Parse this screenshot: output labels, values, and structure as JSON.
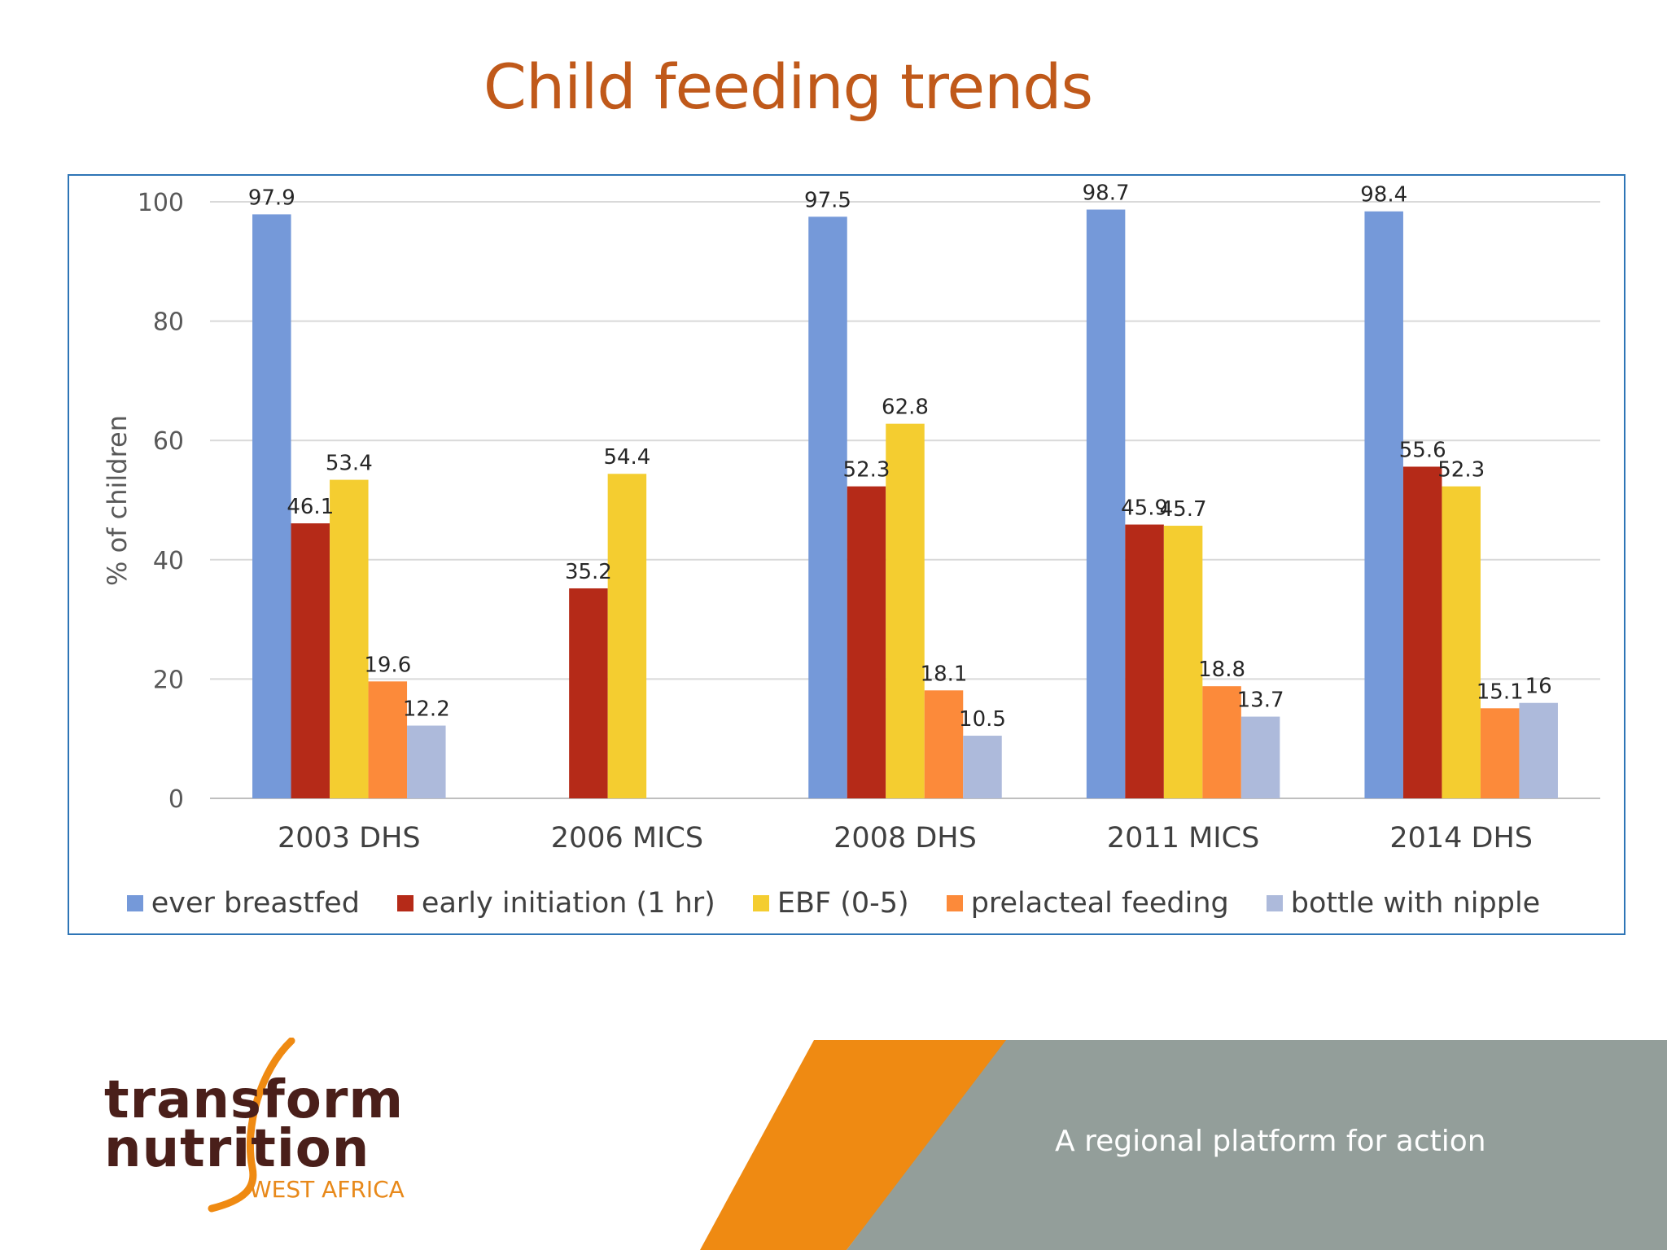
{
  "slide": {
    "title": "Child feeding trends",
    "tagline": "A regional platform for action"
  },
  "logo": {
    "line1": "transform",
    "line2": "nutrition",
    "sub": "WEST AFRICA"
  },
  "colors": {
    "title": "#c0591a",
    "frame": "#2e75b6",
    "band_orange": "#ef8a12",
    "band_gray": "#939e9a"
  },
  "chart_data": {
    "type": "bar",
    "title": "",
    "xlabel": "",
    "ylabel": "% of children",
    "ylim": [
      0,
      100
    ],
    "yticks": [
      0,
      20,
      40,
      60,
      80,
      100
    ],
    "grid": true,
    "legend_position": "bottom",
    "categories": [
      "2003 DHS",
      "2006 MICS",
      "2008 DHS",
      "2011 MICS",
      "2014 DHS"
    ],
    "series": [
      {
        "name": "ever breastfed",
        "color": "#7599d9",
        "values": [
          97.9,
          null,
          97.5,
          98.7,
          98.4
        ]
      },
      {
        "name": "early initiation (1 hr)",
        "color": "#b52a18",
        "values": [
          46.1,
          35.2,
          52.3,
          45.9,
          55.6
        ]
      },
      {
        "name": "EBF (0-5)",
        "color": "#f4cd30",
        "values": [
          53.4,
          54.4,
          62.8,
          45.7,
          52.3
        ]
      },
      {
        "name": "prelacteal feeding",
        "color": "#fc8a3a",
        "values": [
          19.6,
          null,
          18.1,
          18.8,
          15.1
        ]
      },
      {
        "name": "bottle with nipple",
        "color": "#adbadb",
        "values": [
          12.2,
          null,
          10.5,
          13.7,
          16
        ]
      }
    ],
    "data_labels": [
      [
        "97.9",
        "",
        "97.5",
        "98.7",
        "98.4"
      ],
      [
        "46.1",
        "35.2",
        "52.3",
        "45.9",
        "55.6"
      ],
      [
        "53.4",
        "54.4",
        "62.8",
        "45.7",
        "52.3"
      ],
      [
        "19.6",
        "",
        "18.1",
        "18.8",
        "15.1"
      ],
      [
        "12.2",
        "",
        "10.5",
        "13.7",
        "16"
      ]
    ]
  }
}
